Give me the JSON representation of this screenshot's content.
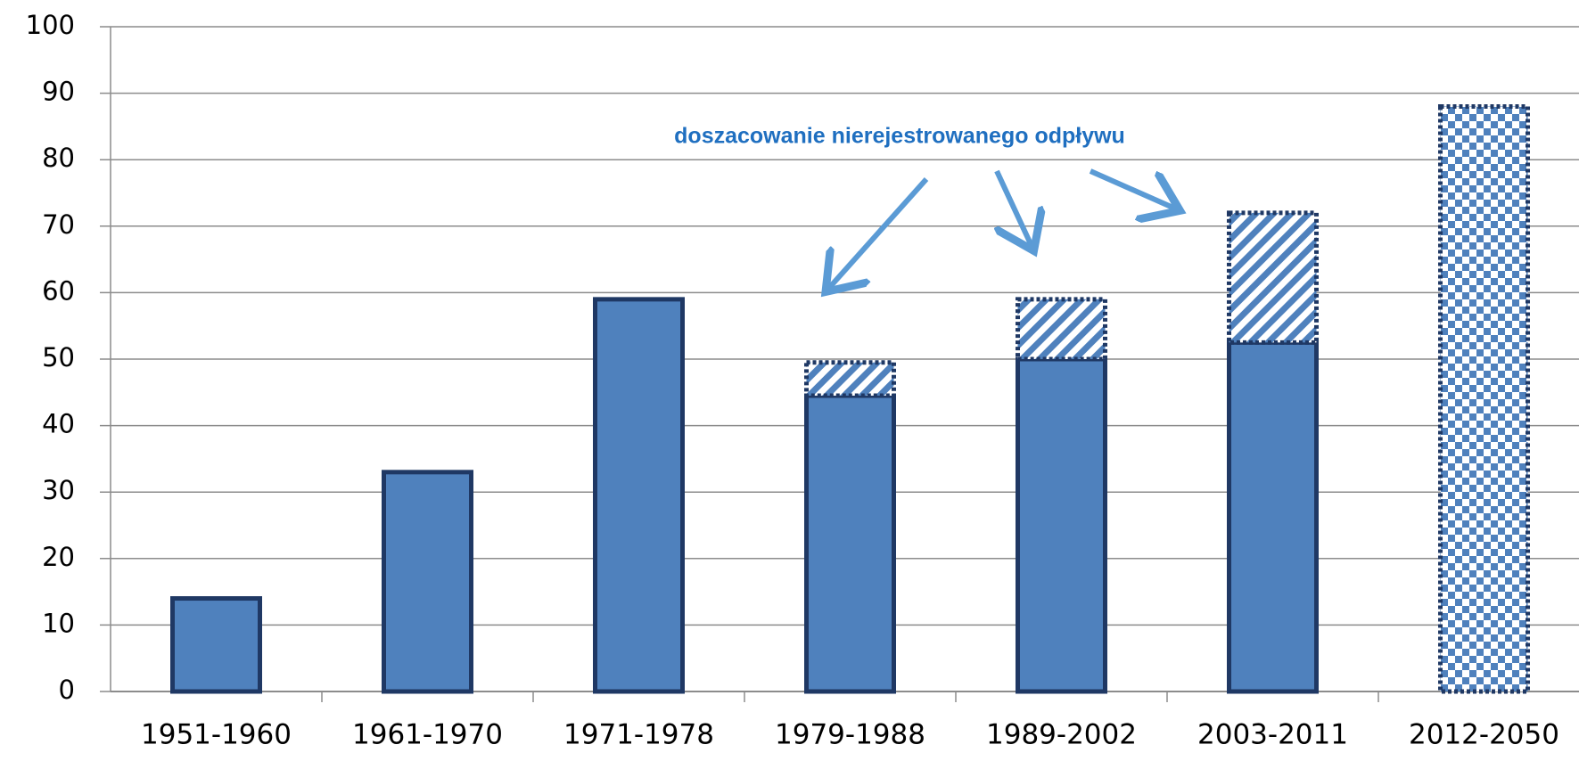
{
  "chart_data": {
    "type": "bar",
    "stacked": true,
    "annotation": "doszacowanie nierejestrowanego odpływu",
    "categories": [
      "1951-1960",
      "1961-1970",
      "1971-1978",
      "1979-1988",
      "1989-2002",
      "2003-2011",
      "2012-2050"
    ],
    "series": [
      {
        "color": "#4f81bd",
        "pattern": "solid",
        "values": [
          14,
          33,
          59,
          44.5,
          50,
          52.5,
          null
        ]
      },
      {
        "color": "#4f81bd",
        "pattern": "hatch",
        "values": [
          null,
          null,
          null,
          5,
          9,
          19.5,
          null
        ]
      },
      {
        "color": "#4f81bd",
        "pattern": "checker",
        "values": [
          null,
          null,
          null,
          null,
          null,
          null,
          88
        ]
      }
    ],
    "ylim": [
      0,
      100
    ],
    "yticks": [
      0,
      10,
      20,
      30,
      40,
      50,
      60,
      70,
      80,
      90,
      100
    ],
    "grid": true
  }
}
